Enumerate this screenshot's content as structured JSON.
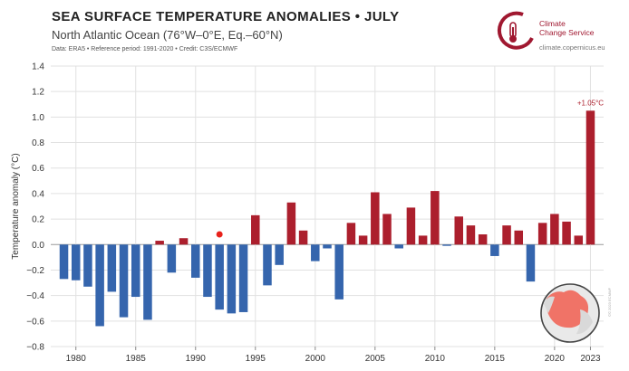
{
  "header": {
    "title": "SEA SURFACE TEMPERATURE ANOMALIES • JULY",
    "subtitle": "North Atlantic Ocean (76°W–0°E, Eq.–60°N)",
    "meta": "Data: ERA5 • Reference period: 1991-2020 • Credit: C3S/ECMWF"
  },
  "logo": {
    "line1": "Climate",
    "line2": "Change Service",
    "url": "climate.copernicus.eu",
    "icon": "thermometer-circle-icon"
  },
  "side_credit": "©© 2023 ECMWF",
  "colors": {
    "positive": "#ac1f2d",
    "negative": "#3565ad",
    "marker": "#e8221b",
    "logo": "#a01830",
    "map_ocean": "#e9e9e9",
    "map_highlight": "#f07367"
  },
  "chart_data": {
    "type": "bar",
    "title": "SEA SURFACE TEMPERATURE ANOMALIES • JULY",
    "subtitle": "North Atlantic Ocean (76°W–0°E, Eq.–60°N)",
    "ylabel": "Temperature anomaly (°C)",
    "xlabel": "",
    "ylim": [
      -0.8,
      1.4
    ],
    "yticks": [
      -0.8,
      -0.6,
      -0.4,
      -0.2,
      0.0,
      0.2,
      0.4,
      0.6,
      0.8,
      1.0,
      1.2,
      1.4
    ],
    "ytick_labels": [
      "−0.8",
      "−0.6",
      "−0.4",
      "−0.2",
      "0.0",
      "0.2",
      "0.4",
      "0.6",
      "0.8",
      "1.0",
      "1.2",
      "1.4"
    ],
    "xticks": [
      1980,
      1985,
      1990,
      1995,
      2000,
      2005,
      2010,
      2015,
      2020,
      2023
    ],
    "grid": true,
    "x": [
      1979,
      1980,
      1981,
      1982,
      1983,
      1984,
      1985,
      1986,
      1987,
      1988,
      1989,
      1990,
      1991,
      1992,
      1993,
      1994,
      1995,
      1996,
      1997,
      1998,
      1999,
      2000,
      2001,
      2002,
      2003,
      2004,
      2005,
      2006,
      2007,
      2008,
      2009,
      2010,
      2011,
      2012,
      2013,
      2014,
      2015,
      2016,
      2017,
      2018,
      2019,
      2020,
      2021,
      2022,
      2023
    ],
    "values": [
      -0.27,
      -0.28,
      -0.33,
      -0.64,
      -0.37,
      -0.57,
      -0.41,
      -0.59,
      0.03,
      -0.22,
      0.05,
      -0.26,
      -0.41,
      -0.51,
      -0.54,
      -0.53,
      0.23,
      -0.32,
      -0.16,
      0.33,
      0.11,
      -0.13,
      -0.03,
      -0.43,
      0.17,
      0.07,
      0.41,
      0.24,
      -0.03,
      0.29,
      0.07,
      0.42,
      -0.01,
      0.22,
      0.15,
      0.08,
      -0.09,
      0.15,
      0.11,
      -0.29,
      0.17,
      0.24,
      0.18,
      0.07,
      1.05
    ],
    "marker": {
      "x": 1992,
      "y": 0.08
    },
    "annotation": {
      "x": 2023,
      "text": "+1.05°C"
    }
  }
}
